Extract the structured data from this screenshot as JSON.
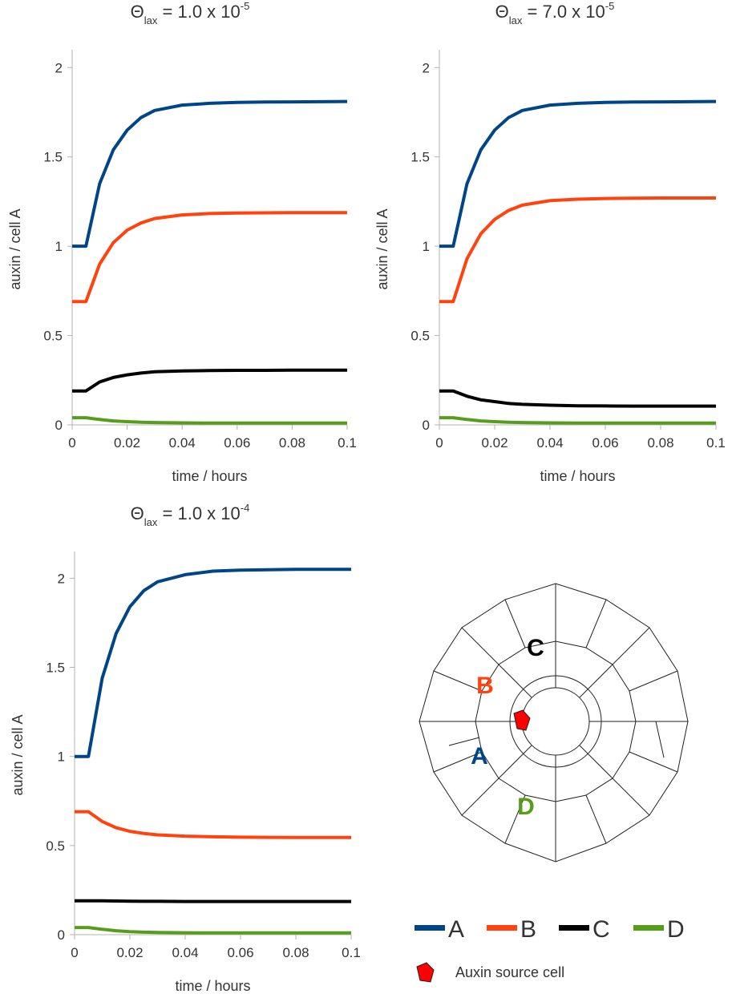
{
  "chart_data": [
    {
      "type": "line",
      "title": {
        "symbol": "Θ",
        "subscript": "lax",
        "text": " = 1.0 x 10",
        "superscript": "-5"
      },
      "x_label": "time / hours",
      "y_label": "auxin / cell A",
      "x": [
        0,
        0.005,
        0.01,
        0.015,
        0.02,
        0.025,
        0.03,
        0.04,
        0.05,
        0.06,
        0.07,
        0.08,
        0.09,
        0.1
      ],
      "xlim": [
        0,
        0.1
      ],
      "xticks": [
        0,
        0.02,
        0.04,
        0.06,
        0.08,
        0.1
      ],
      "ylim": [
        0,
        2.1
      ],
      "yticks": [
        0,
        0.5,
        1,
        1.5,
        2
      ],
      "series": [
        {
          "name": "A",
          "color": "#004586",
          "values": [
            1,
            1,
            1.35,
            1.54,
            1.65,
            1.72,
            1.76,
            1.79,
            1.8,
            1.805,
            1.807,
            1.808,
            1.809,
            1.81
          ]
        },
        {
          "name": "B",
          "color": "#ff420e",
          "values": [
            0.69,
            0.69,
            0.9,
            1.02,
            1.09,
            1.13,
            1.155,
            1.175,
            1.183,
            1.186,
            1.187,
            1.188,
            1.188,
            1.188
          ]
        },
        {
          "name": "C",
          "color": "#000000",
          "values": [
            0.19,
            0.19,
            0.24,
            0.265,
            0.28,
            0.29,
            0.297,
            0.302,
            0.304,
            0.305,
            0.305,
            0.306,
            0.306,
            0.306
          ]
        },
        {
          "name": "D",
          "color": "#579d1c",
          "values": [
            0.04,
            0.04,
            0.03,
            0.022,
            0.018,
            0.015,
            0.013,
            0.011,
            0.01,
            0.01,
            0.01,
            0.01,
            0.01,
            0.01
          ]
        }
      ]
    },
    {
      "type": "line",
      "title": {
        "symbol": "Θ",
        "subscript": "lax",
        "text": " = 7.0 x 10",
        "superscript": "-5"
      },
      "x_label": "time / hours",
      "y_label": "auxin / cell A",
      "x": [
        0,
        0.005,
        0.01,
        0.015,
        0.02,
        0.025,
        0.03,
        0.04,
        0.05,
        0.06,
        0.07,
        0.08,
        0.09,
        0.1
      ],
      "xlim": [
        0,
        0.1
      ],
      "xticks": [
        0,
        0.02,
        0.04,
        0.06,
        0.08,
        0.1
      ],
      "ylim": [
        0,
        2.1
      ],
      "yticks": [
        0,
        0.5,
        1,
        1.5,
        2
      ],
      "series": [
        {
          "name": "A",
          "color": "#004586",
          "values": [
            1,
            1,
            1.35,
            1.54,
            1.65,
            1.72,
            1.76,
            1.79,
            1.8,
            1.805,
            1.807,
            1.808,
            1.809,
            1.81
          ]
        },
        {
          "name": "B",
          "color": "#ff420e",
          "values": [
            0.69,
            0.69,
            0.93,
            1.07,
            1.15,
            1.2,
            1.23,
            1.255,
            1.263,
            1.267,
            1.269,
            1.27,
            1.27,
            1.27
          ]
        },
        {
          "name": "C",
          "color": "#000000",
          "values": [
            0.19,
            0.19,
            0.16,
            0.14,
            0.13,
            0.12,
            0.115,
            0.11,
            0.107,
            0.106,
            0.105,
            0.105,
            0.105,
            0.105
          ]
        },
        {
          "name": "D",
          "color": "#579d1c",
          "values": [
            0.04,
            0.04,
            0.03,
            0.022,
            0.018,
            0.015,
            0.013,
            0.011,
            0.01,
            0.01,
            0.01,
            0.01,
            0.01,
            0.01
          ]
        }
      ]
    },
    {
      "type": "line",
      "title": {
        "symbol": "Θ",
        "subscript": "lax",
        "text": " = 1.0 x 10",
        "superscript": "-4"
      },
      "x_label": "time / hours",
      "y_label": "auxin / cell A",
      "x": [
        0,
        0.005,
        0.01,
        0.015,
        0.02,
        0.025,
        0.03,
        0.04,
        0.05,
        0.06,
        0.07,
        0.08,
        0.09,
        0.1
      ],
      "xlim": [
        0,
        0.1
      ],
      "xticks": [
        0,
        0.02,
        0.04,
        0.06,
        0.08,
        0.1
      ],
      "ylim": [
        0,
        2.15
      ],
      "yticks": [
        0,
        0.5,
        1,
        1.5,
        2
      ],
      "series": [
        {
          "name": "A",
          "color": "#004586",
          "values": [
            1,
            1,
            1.44,
            1.69,
            1.84,
            1.93,
            1.98,
            2.02,
            2.04,
            2.045,
            2.048,
            2.05,
            2.05,
            2.05
          ]
        },
        {
          "name": "B",
          "color": "#ff420e",
          "values": [
            0.69,
            0.69,
            0.635,
            0.6,
            0.58,
            0.568,
            0.56,
            0.553,
            0.549,
            0.547,
            0.546,
            0.545,
            0.545,
            0.545
          ]
        },
        {
          "name": "C",
          "color": "#000000",
          "values": [
            0.19,
            0.19,
            0.19,
            0.189,
            0.188,
            0.187,
            0.187,
            0.186,
            0.186,
            0.186,
            0.186,
            0.186,
            0.186,
            0.186
          ]
        },
        {
          "name": "D",
          "color": "#579d1c",
          "values": [
            0.04,
            0.04,
            0.03,
            0.022,
            0.017,
            0.014,
            0.012,
            0.011,
            0.01,
            0.01,
            0.01,
            0.01,
            0.01,
            0.01
          ]
        }
      ]
    }
  ],
  "diagram": {
    "cell_labels": [
      "A",
      "B",
      "C",
      "D"
    ],
    "source_label": "Auxin source cell"
  }
}
